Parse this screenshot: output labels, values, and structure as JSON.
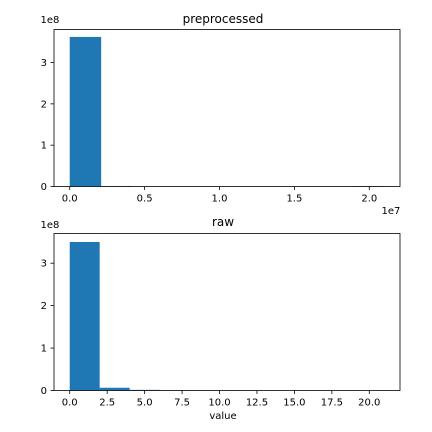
{
  "chart_data": [
    {
      "type": "bar",
      "title": "preprocessed",
      "xlabel": "",
      "xlim": [
        -1050000,
        22050000
      ],
      "ylim": [
        0,
        380000000
      ],
      "x_offset_label": "1e7",
      "y_offset_label": "1e8",
      "xticks": [
        {
          "value": 0,
          "label": "0.0"
        },
        {
          "value": 5000000,
          "label": "0.5"
        },
        {
          "value": 10000000,
          "label": "1.0"
        },
        {
          "value": 15000000,
          "label": "1.5"
        },
        {
          "value": 20000000,
          "label": "2.0"
        }
      ],
      "yticks": [
        {
          "value": 0,
          "label": "0"
        },
        {
          "value": 100000000,
          "label": "1"
        },
        {
          "value": 200000000,
          "label": "2"
        },
        {
          "value": 300000000,
          "label": "3"
        }
      ],
      "bins": [
        {
          "x0": 0,
          "x1": 2100000,
          "count": 362000000
        },
        {
          "x0": 2100000,
          "x1": 4200000,
          "count": 1200000
        },
        {
          "x0": 4200000,
          "x1": 6300000,
          "count": 0
        },
        {
          "x0": 6300000,
          "x1": 8400000,
          "count": 0
        },
        {
          "x0": 8400000,
          "x1": 10500000,
          "count": 0
        },
        {
          "x0": 10500000,
          "x1": 12600000,
          "count": 0
        },
        {
          "x0": 12600000,
          "x1": 14700000,
          "count": 0
        },
        {
          "x0": 14700000,
          "x1": 16800000,
          "count": 0
        },
        {
          "x0": 16800000,
          "x1": 18900000,
          "count": 0
        },
        {
          "x0": 18900000,
          "x1": 21000000,
          "count": 1200000
        }
      ]
    },
    {
      "type": "bar",
      "title": "raw",
      "xlabel": "value",
      "xlim": [
        -1.05,
        22.05
      ],
      "ylim": [
        0,
        370000000
      ],
      "x_offset_label": "",
      "y_offset_label": "1e8",
      "xticks": [
        {
          "value": 0,
          "label": "0.0"
        },
        {
          "value": 2.5,
          "label": "2.5"
        },
        {
          "value": 5,
          "label": "5.0"
        },
        {
          "value": 7.5,
          "label": "7.5"
        },
        {
          "value": 10,
          "label": "10.0"
        },
        {
          "value": 12.5,
          "label": "12.5"
        },
        {
          "value": 15,
          "label": "15.0"
        },
        {
          "value": 17.5,
          "label": "17.5"
        },
        {
          "value": 20,
          "label": "20.0"
        }
      ],
      "yticks": [
        {
          "value": 0,
          "label": "0"
        },
        {
          "value": 100000000,
          "label": "1"
        },
        {
          "value": 200000000,
          "label": "2"
        },
        {
          "value": 300000000,
          "label": "3"
        }
      ],
      "bins": [
        {
          "x0": 0,
          "x1": 2,
          "count": 350000000
        },
        {
          "x0": 2,
          "x1": 4,
          "count": 6500000
        },
        {
          "x0": 4,
          "x1": 6,
          "count": 1500000
        },
        {
          "x0": 6,
          "x1": 8,
          "count": 400000
        },
        {
          "x0": 8,
          "x1": 10,
          "count": 150000
        },
        {
          "x0": 10,
          "x1": 12,
          "count": 50000
        },
        {
          "x0": 12,
          "x1": 14,
          "count": 20000
        },
        {
          "x0": 14,
          "x1": 16,
          "count": 10000
        },
        {
          "x0": 16,
          "x1": 18,
          "count": 5000
        },
        {
          "x0": 18,
          "x1": 20,
          "count": 5000
        }
      ]
    }
  ],
  "colors": {
    "bar": "#1f77b4",
    "axis": "#000000",
    "background": "#ffffff"
  }
}
